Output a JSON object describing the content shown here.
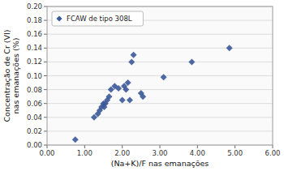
{
  "chart_data": {
    "type": "scatter",
    "xlabel": "(Na+K)/F nas emanações",
    "ylabel": "Concentração de Cr (VI)\nnas emanações (%)",
    "x": [
      0.75,
      1.25,
      1.35,
      1.4,
      1.45,
      1.5,
      1.52,
      1.55,
      1.6,
      1.65,
      1.7,
      1.8,
      1.9,
      2.0,
      2.05,
      2.1,
      2.15,
      2.2,
      2.25,
      2.3,
      2.5,
      2.55,
      3.1,
      3.85,
      4.85
    ],
    "series": [
      {
        "name": "FCAW de tipo 308L",
        "color": "#3B5998",
        "marker": "diamond",
        "values": [
          0.008,
          0.04,
          0.045,
          0.05,
          0.055,
          0.06,
          0.055,
          0.06,
          0.065,
          0.07,
          0.08,
          0.085,
          0.082,
          0.065,
          0.085,
          0.08,
          0.09,
          0.065,
          0.12,
          0.13,
          0.075,
          0.07,
          0.098,
          0.12,
          0.14
        ]
      }
    ],
    "xlim": [
      0.0,
      6.0
    ],
    "ylim": [
      0.0,
      0.2
    ],
    "xticks": [
      {
        "value": 0.0,
        "label": "0.00"
      },
      {
        "value": 1.0,
        "label": "1.00"
      },
      {
        "value": 2.0,
        "label": "2.00"
      },
      {
        "value": 3.0,
        "label": "3.00"
      },
      {
        "value": 4.0,
        "label": "4.00"
      },
      {
        "value": 5.0,
        "label": "5.00"
      },
      {
        "value": 6.0,
        "label": "6.00"
      }
    ],
    "yticks": [
      {
        "value": 0.0,
        "label": "0.00"
      },
      {
        "value": 0.02,
        "label": "0.02"
      },
      {
        "value": 0.04,
        "label": "0.04"
      },
      {
        "value": 0.06,
        "label": "0.06"
      },
      {
        "value": 0.08,
        "label": "0.08"
      },
      {
        "value": 0.1,
        "label": "0.10"
      },
      {
        "value": 0.12,
        "label": "0.12"
      },
      {
        "value": 0.14,
        "label": "0.14"
      },
      {
        "value": 0.16,
        "label": "0.16"
      },
      {
        "value": 0.18,
        "label": "0.18"
      },
      {
        "value": 0.2,
        "label": "0.20"
      }
    ],
    "grid": "y",
    "legend": "upper left"
  }
}
